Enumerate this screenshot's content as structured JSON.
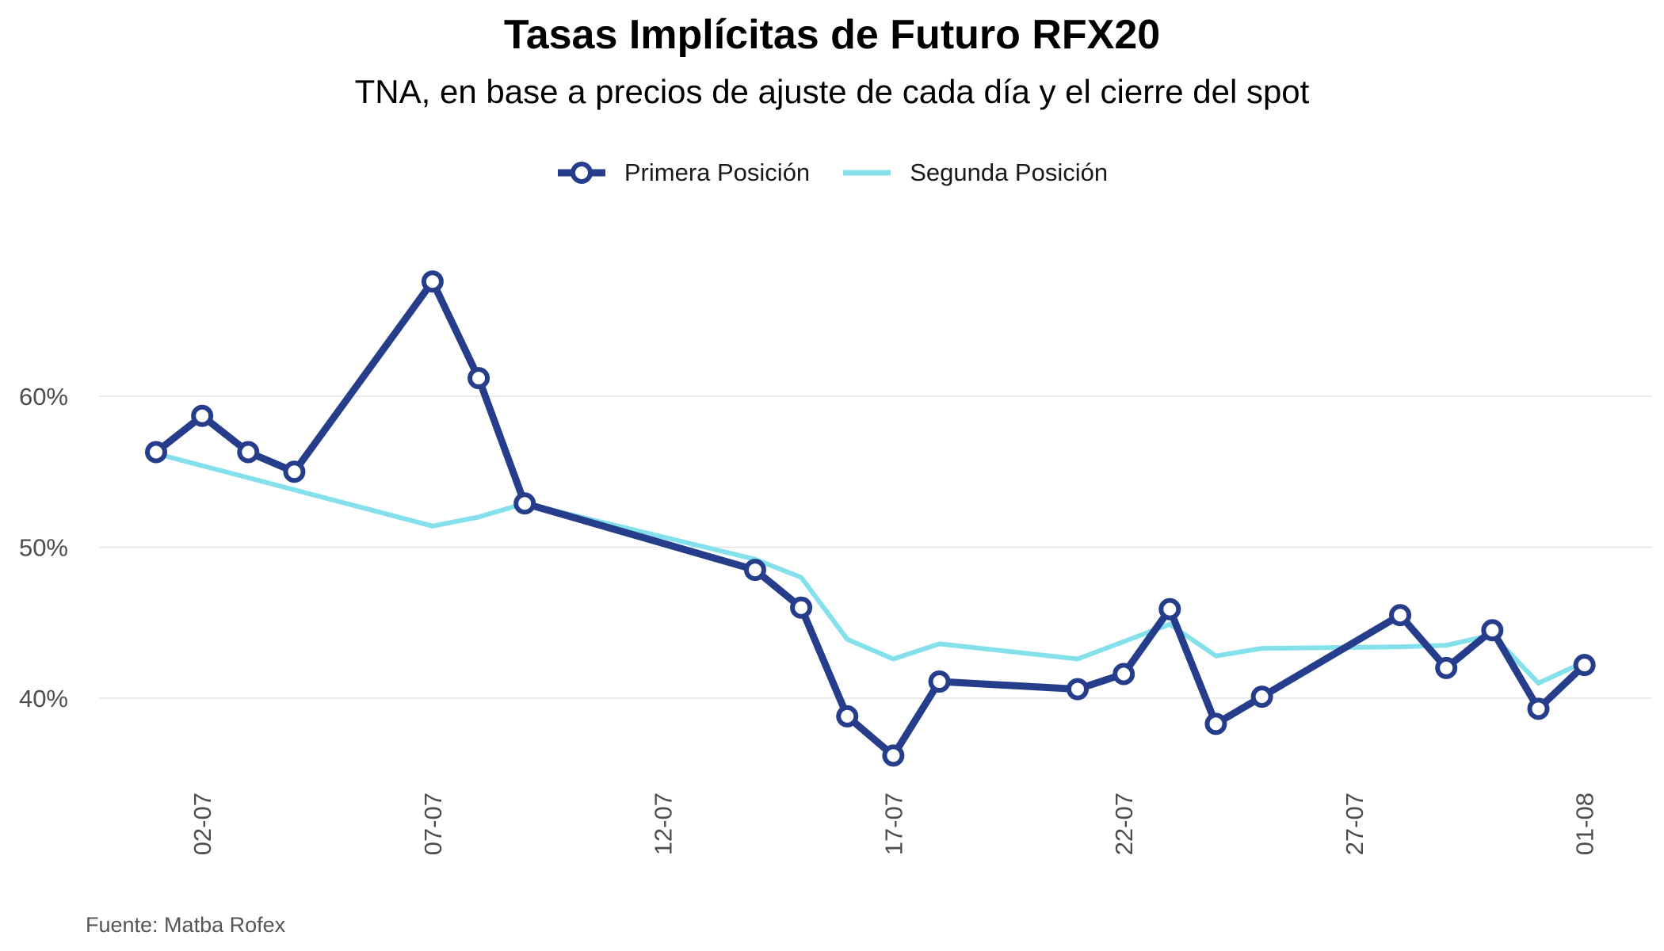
{
  "title": "Tasas Implícitas de Futuro RFX20",
  "subtitle": "TNA, en base a precios de ajuste de cada día y el cierre del spot",
  "caption": "Fuente: Matba Rofex",
  "colors": {
    "primera": "#253D8A",
    "segunda": "#84E0EA",
    "grid": "#e3e3e3",
    "axis_text": "#4d4d4d"
  },
  "chart_data": {
    "type": "line",
    "title": "Tasas Implícitas de Futuro RFX20",
    "subtitle": "TNA, en base a precios de ajuste de cada día y el cierre del spot",
    "xlabel": "",
    "ylabel": "",
    "legend_position": "top",
    "grid": true,
    "x_ticks": [
      "02-07",
      "07-07",
      "12-07",
      "17-07",
      "22-07",
      "27-07",
      "01-08"
    ],
    "y_ticks": [
      40,
      50,
      60
    ],
    "y_tick_labels": [
      "40%",
      "50%",
      "60%"
    ],
    "ylim": [
      32,
      70
    ],
    "series": [
      {
        "name": "Primera Posición",
        "marker": "circle",
        "points": [
          {
            "x": "2020-07-01",
            "y": 56.3
          },
          {
            "x": "2020-07-02",
            "y": 58.7
          },
          {
            "x": "2020-07-03",
            "y": 56.3
          },
          {
            "x": "2020-07-04",
            "y": 55.0
          },
          {
            "x": "2020-07-07",
            "y": 67.6
          },
          {
            "x": "2020-07-08",
            "y": 61.2
          },
          {
            "x": "2020-07-09",
            "y": 52.9
          },
          {
            "x": "2020-07-14",
            "y": 48.5
          },
          {
            "x": "2020-07-15",
            "y": 46.0
          },
          {
            "x": "2020-07-16",
            "y": 38.8
          },
          {
            "x": "2020-07-17",
            "y": 36.2
          },
          {
            "x": "2020-07-18",
            "y": 41.1
          },
          {
            "x": "2020-07-21",
            "y": 40.6
          },
          {
            "x": "2020-07-22",
            "y": 41.6
          },
          {
            "x": "2020-07-23",
            "y": 45.9
          },
          {
            "x": "2020-07-24",
            "y": 38.3
          },
          {
            "x": "2020-07-25",
            "y": 40.1
          },
          {
            "x": "2020-07-28",
            "y": 45.5
          },
          {
            "x": "2020-07-29",
            "y": 42.0
          },
          {
            "x": "2020-07-30",
            "y": 44.5
          },
          {
            "x": "2020-07-31",
            "y": 39.3
          },
          {
            "x": "2020-08-01",
            "y": 42.2
          }
        ]
      },
      {
        "name": "Segunda Posición",
        "marker": "none",
        "points": [
          {
            "x": "2020-07-01",
            "y": 56.2
          },
          {
            "x": "2020-07-07",
            "y": 51.4
          },
          {
            "x": "2020-07-08",
            "y": 52.0
          },
          {
            "x": "2020-07-09",
            "y": 52.9
          },
          {
            "x": "2020-07-14",
            "y": 49.2
          },
          {
            "x": "2020-07-15",
            "y": 48.0
          },
          {
            "x": "2020-07-16",
            "y": 43.9
          },
          {
            "x": "2020-07-17",
            "y": 42.6
          },
          {
            "x": "2020-07-18",
            "y": 43.6
          },
          {
            "x": "2020-07-21",
            "y": 42.6
          },
          {
            "x": "2020-07-23",
            "y": 44.9
          },
          {
            "x": "2020-07-24",
            "y": 42.8
          },
          {
            "x": "2020-07-25",
            "y": 43.3
          },
          {
            "x": "2020-07-28",
            "y": 43.4
          },
          {
            "x": "2020-07-29",
            "y": 43.5
          },
          {
            "x": "2020-07-30",
            "y": 44.2
          },
          {
            "x": "2020-07-31",
            "y": 41.0
          },
          {
            "x": "2020-08-01",
            "y": 42.4
          }
        ]
      }
    ]
  }
}
